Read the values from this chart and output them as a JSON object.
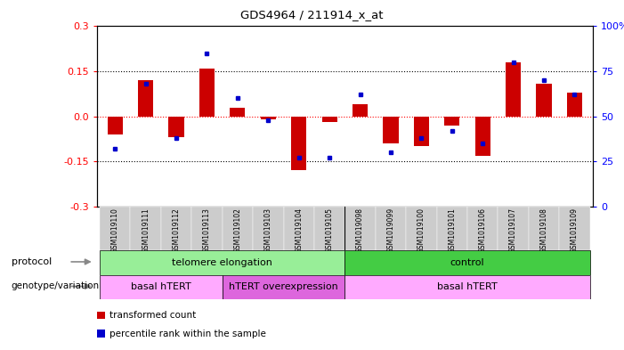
{
  "title": "GDS4964 / 211914_x_at",
  "samples": [
    "GSM1019110",
    "GSM1019111",
    "GSM1019112",
    "GSM1019113",
    "GSM1019102",
    "GSM1019103",
    "GSM1019104",
    "GSM1019105",
    "GSM1019098",
    "GSM1019099",
    "GSM1019100",
    "GSM1019101",
    "GSM1019106",
    "GSM1019107",
    "GSM1019108",
    "GSM1019109"
  ],
  "transformed_count": [
    -0.06,
    0.12,
    -0.07,
    0.16,
    0.03,
    -0.01,
    -0.18,
    -0.02,
    0.04,
    -0.09,
    -0.1,
    -0.03,
    -0.13,
    0.18,
    0.11,
    0.08
  ],
  "percentile_rank": [
    32,
    68,
    38,
    85,
    60,
    48,
    27,
    27,
    62,
    30,
    38,
    42,
    35,
    80,
    70,
    62
  ],
  "ylim_left": [
    -0.3,
    0.3
  ],
  "ylim_right": [
    0,
    100
  ],
  "yticks_left": [
    -0.3,
    -0.15,
    0.0,
    0.15,
    0.3
  ],
  "yticks_right": [
    0,
    25,
    50,
    75,
    100
  ],
  "ytick_labels_right": [
    "0",
    "25",
    "50",
    "75",
    "100%"
  ],
  "protocol_groups": [
    {
      "label": "telomere elongation",
      "start": 0,
      "end": 8,
      "color": "#98EE98"
    },
    {
      "label": "control",
      "start": 8,
      "end": 16,
      "color": "#44CC44"
    }
  ],
  "genotype_groups": [
    {
      "label": "basal hTERT",
      "start": 0,
      "end": 4,
      "color": "#FFAAFF"
    },
    {
      "label": "hTERT overexpression",
      "start": 4,
      "end": 8,
      "color": "#DD66DD"
    },
    {
      "label": "basal hTERT",
      "start": 8,
      "end": 16,
      "color": "#FFAAFF"
    }
  ],
  "bar_color": "#CC0000",
  "dot_color": "#0000CC",
  "bg_color": "#ffffff",
  "legend_items": [
    {
      "color": "#CC0000",
      "label": "transformed count"
    },
    {
      "color": "#0000CC",
      "label": "percentile rank within the sample"
    }
  ]
}
